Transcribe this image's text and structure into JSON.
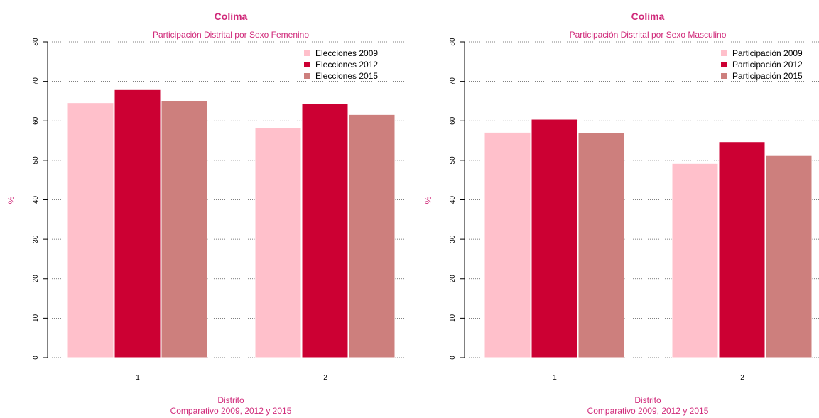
{
  "colors": {
    "title": "#d02a7a",
    "bar_2009": "#ffc0cb",
    "bar_2012": "#cc0033",
    "bar_2015": "#cd7f7d"
  },
  "chart_data": [
    {
      "type": "bar",
      "title": "Colima",
      "subtitle": "Participación Distrital por Sexo Femenino",
      "xlabel": "Distrito",
      "xlabel_sub": "Comparativo 2009, 2012 y 2015",
      "ylabel": "%",
      "ylim": [
        0,
        80
      ],
      "yticks": [
        "0",
        "10",
        "20",
        "30",
        "40",
        "50",
        "60",
        "70",
        "80"
      ],
      "categories": [
        "1",
        "2"
      ],
      "grid": true,
      "legend_position": "top-right",
      "series": [
        {
          "name": "Elecciones 2009",
          "values": [
            64.6,
            58.3
          ]
        },
        {
          "name": "Elecciones  2012",
          "values": [
            67.9,
            64.4
          ]
        },
        {
          "name": "Elecciones 2015",
          "values": [
            65.1,
            61.6
          ]
        }
      ]
    },
    {
      "type": "bar",
      "title": "Colima",
      "subtitle": "Participación Distrital por Sexo Masculino",
      "xlabel": "Distrito",
      "xlabel_sub": "Comparativo 2009, 2012 y 2015",
      "ylabel": "%",
      "ylim": [
        0,
        80
      ],
      "yticks": [
        "0",
        "10",
        "20",
        "30",
        "40",
        "50",
        "60",
        "70",
        "80"
      ],
      "categories": [
        "1",
        "2"
      ],
      "grid": true,
      "legend_position": "top-right",
      "series": [
        {
          "name": "Participación 2009",
          "values": [
            57.1,
            49.2
          ]
        },
        {
          "name": "Participación 2012",
          "values": [
            60.4,
            54.7
          ]
        },
        {
          "name": "Participación 2015",
          "values": [
            56.9,
            51.2
          ]
        }
      ]
    }
  ]
}
